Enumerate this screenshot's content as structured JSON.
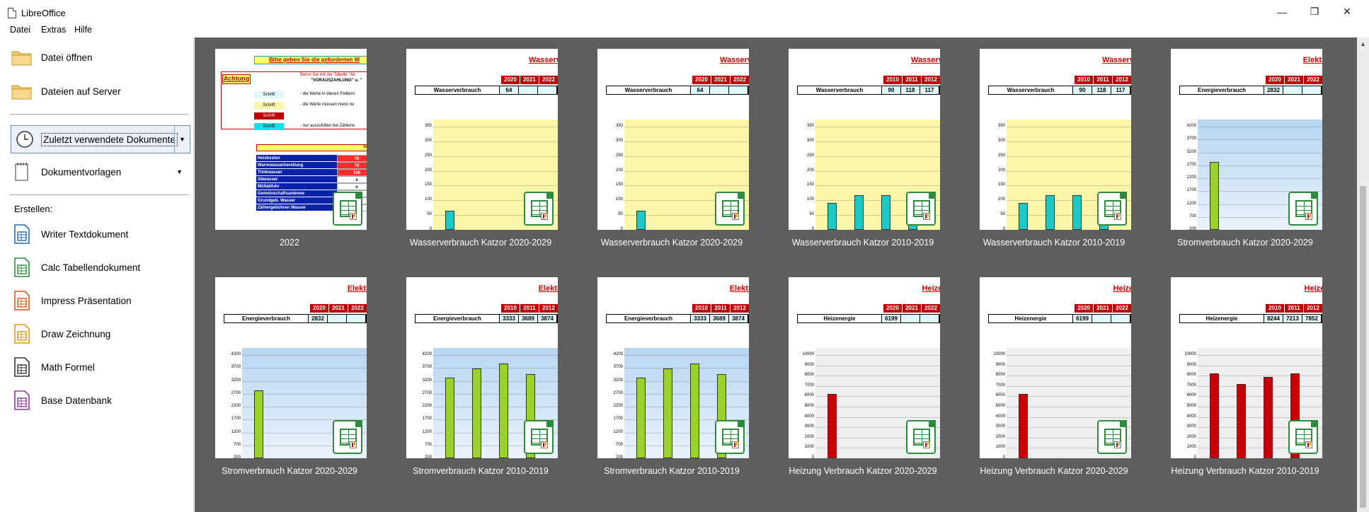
{
  "window": {
    "title": "LibreOffice",
    "minimize": "—",
    "restore": "❐",
    "close": "✕"
  },
  "menu": [
    {
      "label": "Datei"
    },
    {
      "label": "Extras"
    },
    {
      "label": "Hilfe"
    }
  ],
  "sidebar": {
    "open_file": "Datei öffnen",
    "remote_files": "Dateien auf Server",
    "recent_docs": "Zuletzt verwendete Dokumente",
    "templates": "Dokumentvorlagen",
    "create_label": "Erstellen:",
    "create_items": [
      {
        "label": "Writer Textdokument",
        "icon": "writer-icon",
        "color": "#2a6ab0"
      },
      {
        "label": "Calc Tabellendokument",
        "icon": "calc-icon",
        "color": "#2e8b3e"
      },
      {
        "label": "Impress Präsentation",
        "icon": "impress-icon",
        "color": "#d9591b"
      },
      {
        "label": "Draw Zeichnung",
        "icon": "draw-icon",
        "color": "#d99a14"
      },
      {
        "label": "Math Formel",
        "icon": "math-icon",
        "color": "#333333"
      },
      {
        "label": "Base Datenbank",
        "icon": "base-icon",
        "color": "#8a3a9a"
      }
    ]
  },
  "thumbnails": [
    {
      "caption": "2022",
      "kind": "form"
    },
    {
      "caption": "Wasserverbrauch Katzor 2020-2029",
      "kind": "chart",
      "head": "Wasserve",
      "row": "Wasserverbrauch",
      "years": [
        "2020",
        "2021",
        "2022"
      ],
      "vals": [
        "64",
        "",
        ""
      ],
      "bg": "#fbf6a8",
      "bar": "#1fc7c7",
      "ticks": [
        "350",
        "300",
        "250",
        "200",
        "150",
        "100",
        "50",
        "0"
      ],
      "max": 350,
      "bars": [
        64
      ]
    },
    {
      "caption": "Wasserverbrauch Katzor 2020-2029",
      "kind": "chart",
      "head": "Wasserve",
      "row": "Wasserverbrauch",
      "years": [
        "2020",
        "2021",
        "2022"
      ],
      "vals": [
        "64",
        "",
        ""
      ],
      "bg": "#fbf6a8",
      "bar": "#1fc7c7",
      "ticks": [
        "350",
        "300",
        "250",
        "200",
        "150",
        "100",
        "50",
        "0"
      ],
      "max": 350,
      "bars": [
        64
      ]
    },
    {
      "caption": "Wasserverbrauch Katzor 2010-2019",
      "kind": "chart",
      "head": "Wasserve",
      "row": "Wasserverbrauch",
      "years": [
        "2010",
        "2011",
        "2012"
      ],
      "vals": [
        "90",
        "118",
        "117"
      ],
      "bg": "#fbf6a8",
      "bar": "#1fc7c7",
      "ticks": [
        "350",
        "300",
        "250",
        "200",
        "150",
        "100",
        "50",
        "0"
      ],
      "max": 350,
      "bars": [
        90,
        118,
        117,
        118
      ]
    },
    {
      "caption": "Wasserverbrauch Katzor 2010-2019",
      "kind": "chart",
      "head": "Wasserve",
      "row": "Wasserverbrauch",
      "years": [
        "2010",
        "2011",
        "2012"
      ],
      "vals": [
        "90",
        "118",
        "117"
      ],
      "bg": "#fbf6a8",
      "bar": "#1fc7c7",
      "ticks": [
        "350",
        "300",
        "250",
        "200",
        "150",
        "100",
        "50",
        "0"
      ],
      "max": 350,
      "bars": [
        90,
        118,
        117,
        118
      ]
    },
    {
      "caption": "Stromverbrauch Katzor 2020-2029",
      "kind": "chart",
      "head": "Elektro",
      "row": "Energieverbrauch",
      "years": [
        "2020",
        "2021",
        "2022"
      ],
      "vals": [
        "2832",
        "",
        ""
      ],
      "bg": "#cfe4f7",
      "bar": "#9ad12a",
      "ticks": [
        "4200",
        "3700",
        "3200",
        "2700",
        "2200",
        "1700",
        "1200",
        "700",
        "200"
      ],
      "max": 4200,
      "min": 200,
      "bars": [
        2832
      ]
    },
    {
      "caption": "Stromverbrauch Katzor 2020-2029",
      "kind": "chart",
      "head": "Elektro",
      "row": "Energieverbrauch",
      "years": [
        "2020",
        "2021",
        "2022"
      ],
      "vals": [
        "2832",
        "",
        ""
      ],
      "bg": "#cfe4f7",
      "bar": "#9ad12a",
      "ticks": [
        "4200",
        "3700",
        "3200",
        "2700",
        "2200",
        "1700",
        "1200",
        "700",
        "200"
      ],
      "max": 4200,
      "min": 200,
      "bars": [
        2832
      ]
    },
    {
      "caption": "Stromverbrauch Katzor 2010-2019",
      "kind": "chart",
      "head": "Elektro",
      "row": "Energieverbrauch",
      "years": [
        "2010",
        "2011",
        "2012"
      ],
      "vals": [
        "3333",
        "3689",
        "3874"
      ],
      "bg": "#cfe4f7",
      "bar": "#9ad12a",
      "ticks": [
        "4200",
        "3700",
        "3200",
        "2700",
        "2200",
        "1700",
        "1200",
        "700",
        "200"
      ],
      "max": 4200,
      "min": 200,
      "bars": [
        3333,
        3689,
        3874,
        3450
      ]
    },
    {
      "caption": "Stromverbrauch Katzor 2010-2019",
      "kind": "chart",
      "head": "Elektro",
      "row": "Energieverbrauch",
      "years": [
        "2010",
        "2011",
        "2012"
      ],
      "vals": [
        "3333",
        "3689",
        "3874"
      ],
      "bg": "#cfe4f7",
      "bar": "#9ad12a",
      "ticks": [
        "4200",
        "3700",
        "3200",
        "2700",
        "2200",
        "1700",
        "1200",
        "700",
        "200"
      ],
      "max": 4200,
      "min": 200,
      "bars": [
        3333,
        3689,
        3874,
        3450
      ]
    },
    {
      "caption": "Heizung Verbrauch Katzor 2020-2029",
      "kind": "chart",
      "head": "Heizen",
      "row": "Heizenergie",
      "years": [
        "2020",
        "2021",
        "2022"
      ],
      "vals": [
        "6199",
        "",
        ""
      ],
      "bg": "#efefef",
      "bar": "#c80000",
      "ticks": [
        "10000",
        "9000",
        "8000",
        "7000",
        "6000",
        "5000",
        "4000",
        "3000",
        "2000",
        "1000",
        "0"
      ],
      "max": 10000,
      "bars": [
        6199
      ]
    },
    {
      "caption": "Heizung Verbrauch Katzor 2020-2029",
      "kind": "chart",
      "head": "Heizen",
      "row": "Heizenergie",
      "years": [
        "2020",
        "2021",
        "2022"
      ],
      "vals": [
        "6199",
        "",
        ""
      ],
      "bg": "#efefef",
      "bar": "#c80000",
      "ticks": [
        "10000",
        "9000",
        "8000",
        "7000",
        "6000",
        "5000",
        "4000",
        "3000",
        "2000",
        "1000",
        "0"
      ],
      "max": 10000,
      "bars": [
        6199
      ]
    },
    {
      "caption": "Heizung Verbrauch Katzor 2010-2019",
      "kind": "chart",
      "head": "Heizen",
      "row": "Heizenergie",
      "years": [
        "2010",
        "2011",
        "2012"
      ],
      "vals": [
        "8244",
        "7213",
        "7852"
      ],
      "bg": "#efefef",
      "bar": "#c80000",
      "ticks": [
        "10000",
        "9000",
        "8000",
        "7000",
        "6000",
        "5000",
        "4000",
        "3000",
        "2000",
        "1000",
        "0"
      ],
      "max": 10000,
      "bars": [
        8244,
        7213,
        7852,
        8244
      ]
    }
  ],
  "form_preview": {
    "banner": "Bitte geben Sie die geforderten W",
    "warn": "Achtung",
    "hint1": "Bevor Sie mit der Tabelle \"Ab",
    "hint2": "\"VORAUSZAHLUNG\" u. \"",
    "legend": [
      {
        "tag": "Schrift",
        "text": "- die Werte in diesen Feldern",
        "bg": "#dff7fa"
      },
      {
        "tag": "Schrift",
        "text": "- die Werte müssen meist nu",
        "bg": "#fbf6a8"
      },
      {
        "tag": "Schrift",
        "text": "",
        "bg": "#c00000"
      },
      {
        "tag": "Schrift",
        "text": "- nur auszufüllen bei Zählerw",
        "bg": "#19e0e8"
      }
    ],
    "table_head": "Vertei",
    "rows": [
      {
        "label": "Heizkosten",
        "val": "70"
      },
      {
        "label": "Warmwasserbereitung",
        "val": "70"
      },
      {
        "label": "Trinkwasser",
        "val": "100"
      },
      {
        "label": "Abwasser",
        "val": "x"
      },
      {
        "label": "Müllabfuhr",
        "val": "x"
      },
      {
        "label": "Gemeinschaftsantenne",
        "val": ""
      },
      {
        "label": "Grundgeb. Wasser",
        "val": ""
      },
      {
        "label": "Zählergebühren Wasser",
        "val": ""
      }
    ]
  }
}
